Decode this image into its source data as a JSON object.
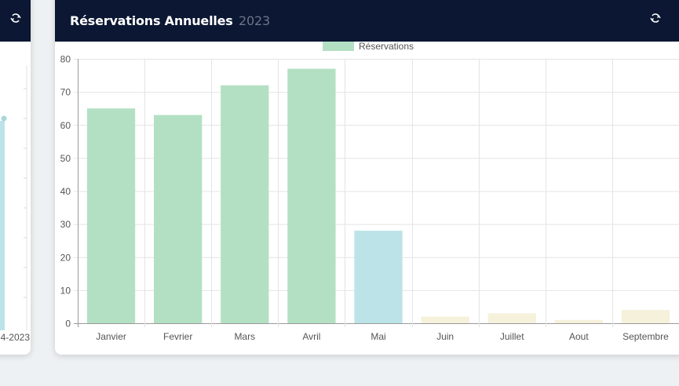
{
  "left_card": {
    "partial_date": "4-2023"
  },
  "main_card": {
    "title": "Réservations Annuelles",
    "year": "2023"
  },
  "colors": {
    "header_bg": "#0b1733",
    "bar_green": "#b3e0c3",
    "bar_blue": "#bce3e8",
    "bar_yellow": "#f6f1db"
  },
  "chart_data": {
    "type": "bar",
    "categories": [
      "Janvier",
      "Fevrier",
      "Mars",
      "Avril",
      "Mai",
      "Juin",
      "Juillet",
      "Aout",
      "Septembre"
    ],
    "series": [
      {
        "name": "Réservations",
        "values": [
          65,
          63,
          72,
          77,
          28,
          2,
          3,
          1,
          4
        ],
        "bar_colors": [
          "#b3e0c3",
          "#b3e0c3",
          "#b3e0c3",
          "#b3e0c3",
          "#bce3e8",
          "#f6f1db",
          "#f6f1db",
          "#f6f1db",
          "#f6f1db"
        ]
      }
    ],
    "ylim": [
      0,
      80
    ],
    "yticks": [
      0,
      10,
      20,
      30,
      40,
      50,
      60,
      70,
      80
    ],
    "legend_position": "top",
    "grid": true
  }
}
